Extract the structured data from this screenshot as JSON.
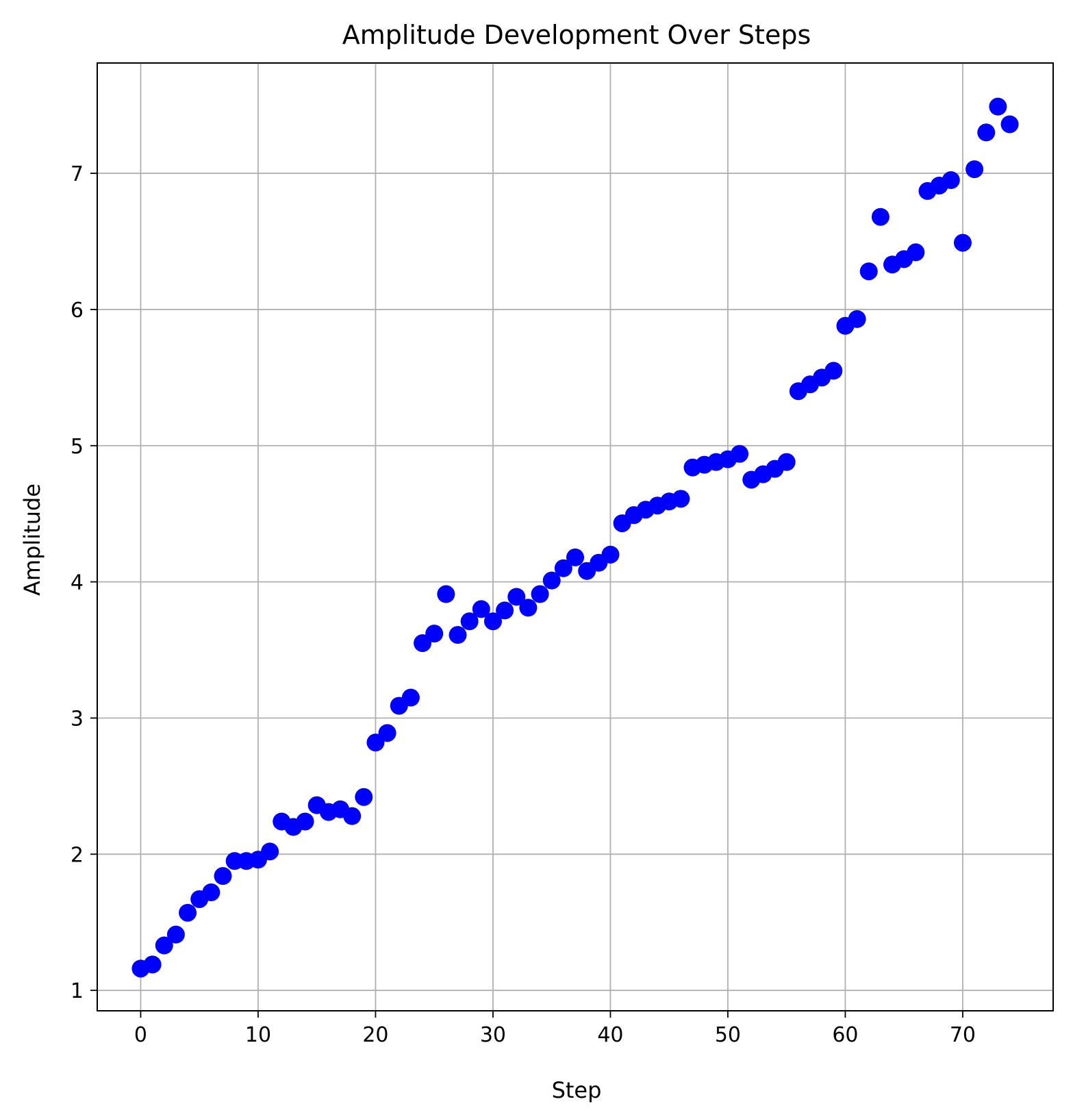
{
  "chart_data": {
    "type": "scatter",
    "title": "Amplitude Development Over Steps",
    "xlabel": "Step",
    "ylabel": "Amplitude",
    "xlim": [
      -3.7,
      77.7
    ],
    "ylim": [
      0.85,
      7.81
    ],
    "xticks": [
      0,
      10,
      20,
      30,
      40,
      50,
      60,
      70
    ],
    "yticks": [
      1,
      2,
      3,
      4,
      5,
      6,
      7
    ],
    "grid": true,
    "marker_color": "#0000ff",
    "series": [
      {
        "x": [
          0,
          1,
          2,
          3,
          4,
          5,
          6,
          7,
          8,
          9,
          10,
          11,
          12,
          13,
          14,
          15,
          16,
          17,
          18,
          19,
          20,
          21,
          22,
          23,
          24,
          25,
          26,
          27,
          28,
          29,
          30,
          31,
          32,
          33,
          34,
          35,
          36,
          37,
          38,
          39,
          40,
          41,
          42,
          43,
          44,
          45,
          46,
          47,
          48,
          49,
          50,
          51,
          52,
          53,
          54,
          55,
          56,
          57,
          58,
          59,
          60,
          61,
          62,
          63,
          64,
          65,
          66,
          67,
          68,
          69,
          70,
          71,
          72,
          73,
          74
        ],
        "y": [
          1.16,
          1.19,
          1.33,
          1.41,
          1.57,
          1.67,
          1.72,
          1.84,
          1.95,
          1.95,
          1.96,
          2.02,
          2.24,
          2.2,
          2.24,
          2.36,
          2.31,
          2.33,
          2.28,
          2.42,
          2.82,
          2.89,
          3.09,
          3.15,
          3.55,
          3.62,
          3.91,
          3.61,
          3.71,
          3.8,
          3.71,
          3.79,
          3.89,
          3.81,
          3.91,
          4.01,
          4.1,
          4.18,
          4.08,
          4.14,
          4.2,
          4.43,
          4.49,
          4.53,
          4.56,
          4.59,
          4.61,
          4.84,
          4.86,
          4.88,
          4.9,
          4.94,
          4.75,
          4.79,
          4.83,
          4.88,
          5.4,
          5.45,
          5.5,
          5.55,
          5.88,
          5.93,
          6.28,
          6.68,
          6.33,
          6.37,
          6.42,
          6.87,
          6.91,
          6.95,
          6.49,
          7.03,
          7.3,
          7.49,
          7.36
        ]
      }
    ]
  }
}
